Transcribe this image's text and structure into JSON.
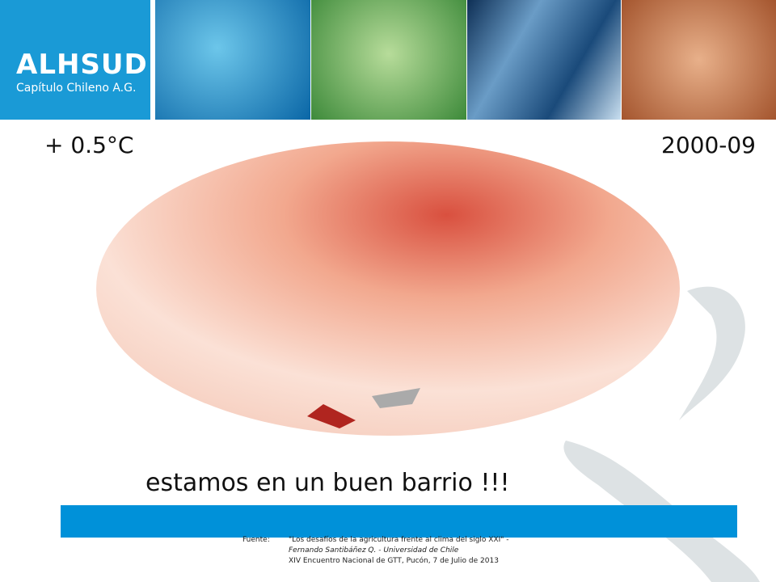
{
  "header": {
    "logo_title": "ALHSUD",
    "logo_subtitle": "Capítulo Chileno A.G."
  },
  "slide": {
    "anomaly": "+ 0.5°C",
    "period": "2000-09",
    "caption": "estamos en un buen barrio !!!"
  },
  "source": {
    "label": "Fuente:",
    "lines": [
      "\"Los desafíos de la agricultura frente al clima del siglo XXI\" -",
      "Fernando Santibáñez Q. - Universidad de Chile",
      "XIV Encuentro Nacional de GTT, Pucón, 7 de Julio de 2013"
    ]
  }
}
